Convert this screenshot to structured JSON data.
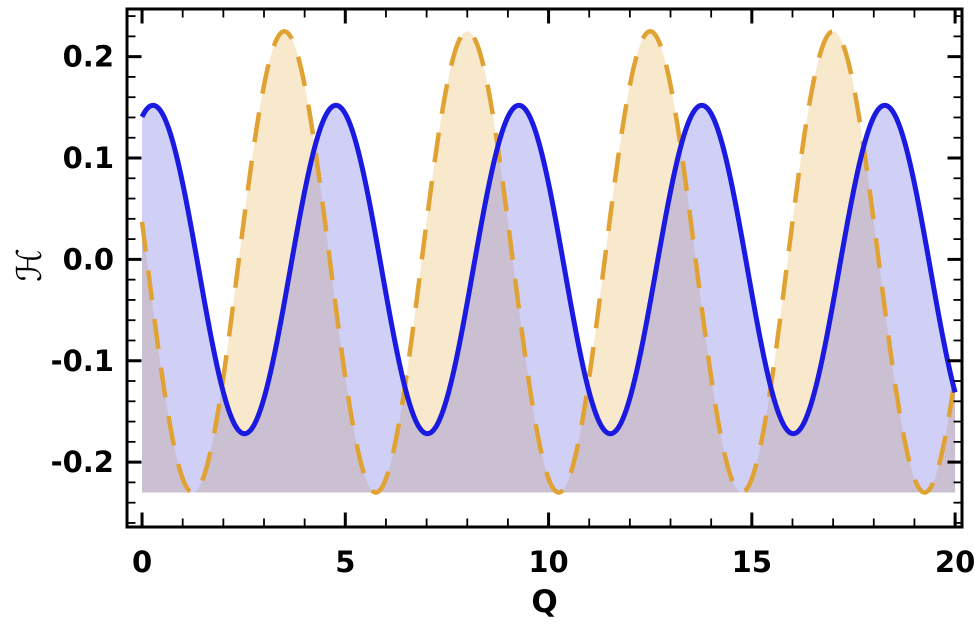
{
  "figure": {
    "background": "#ffffff",
    "frame_color": "#000000",
    "tick_color": "#000000",
    "label_color": "#000000"
  },
  "chart_data": {
    "type": "line",
    "title": "",
    "xlabel": "Q",
    "ylabel": "ℋ",
    "xlim": [
      -0.37,
      20.17
    ],
    "ylim": [
      -0.264,
      0.247
    ],
    "x_domain": [
      0,
      20
    ],
    "x_ticks": [
      0,
      5,
      10,
      15,
      20
    ],
    "x_tick_labels": [
      "0",
      "5",
      "10",
      "15",
      "20"
    ],
    "x_minor_step": 1,
    "y_ticks": [
      -0.2,
      -0.1,
      0,
      0.1,
      0.2
    ],
    "y_tick_labels": [
      "-0.2",
      "-0.1",
      "0.0",
      "0.1",
      "0.2"
    ],
    "y_minor_step": 0.02,
    "fill_baseline": -0.23,
    "grid": false,
    "legend": null,
    "series": [
      {
        "name": "dashed-orange-wave",
        "model": "cosine",
        "amplitude": 0.2275,
        "offset": -0.0025,
        "period": 4.5,
        "x_peak": 3.5,
        "peak_value": 0.225,
        "min_value": -0.23,
        "line_color": "#E0A233",
        "line_style": "dashed",
        "dash": [
          30,
          19
        ],
        "line_width": 4.5,
        "fill_color": "rgba(230,173,72,0.28)"
      },
      {
        "name": "solid-blue-wave",
        "model": "cosine",
        "amplitude": 0.162,
        "offset": -0.01,
        "period": 4.5,
        "x_peak": 0.27,
        "peak_value": 0.152,
        "min_value": -0.172,
        "line_color": "#1A1AE0",
        "line_style": "solid",
        "dash": null,
        "line_width": 5,
        "fill_color": "rgba(82,82,224,0.27)"
      }
    ]
  }
}
